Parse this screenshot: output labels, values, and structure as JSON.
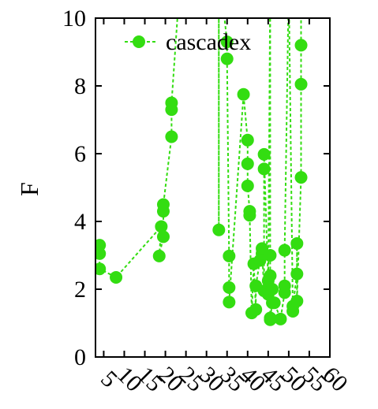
{
  "chart_data": {
    "type": "line",
    "title": "",
    "xlabel": "",
    "ylabel": "F",
    "xlim": [
      3,
      60
    ],
    "ylim": [
      0,
      10
    ],
    "x_ticks": [
      "5",
      "10",
      "15",
      "20",
      "25",
      "30",
      "35",
      "40",
      "45",
      "50",
      "55",
      "60"
    ],
    "x_tick_values": [
      5,
      10,
      15,
      20,
      25,
      30,
      35,
      40,
      45,
      50,
      55,
      60
    ],
    "y_ticks": [
      "0",
      "2",
      "4",
      "6",
      "8",
      "10"
    ],
    "y_tick_values": [
      0,
      2,
      4,
      6,
      8,
      10
    ],
    "grid": false,
    "legend_position": "top",
    "series": [
      {
        "name": "cascadex",
        "color": "#33dd11",
        "points": [
          [
            4.0,
            3.3
          ],
          [
            4.0,
            3.05
          ],
          [
            4.0,
            2.6
          ],
          [
            8.0,
            2.35
          ],
          [
            19.0,
            3.85
          ],
          [
            18.5,
            2.98
          ],
          [
            19.5,
            3.55
          ],
          [
            19.5,
            4.3
          ],
          [
            19.5,
            4.5
          ],
          [
            21.5,
            6.5
          ],
          [
            21.5,
            7.3
          ],
          [
            21.5,
            7.5
          ],
          [
            23.5,
            11.0
          ],
          [
            33.0,
            11.0
          ],
          [
            33.0,
            3.75
          ],
          [
            33.0,
            11.0
          ],
          [
            33.5,
            11.0
          ],
          [
            35.0,
            9.3
          ],
          [
            35.0,
            8.8
          ],
          [
            35.5,
            2.98
          ],
          [
            35.5,
            2.05
          ],
          [
            35.5,
            1.62
          ],
          [
            39.0,
            7.75
          ],
          [
            40.0,
            6.4
          ],
          [
            40.0,
            5.7
          ],
          [
            40.0,
            5.05
          ],
          [
            40.5,
            4.3
          ],
          [
            40.5,
            4.18
          ],
          [
            41.0,
            1.3
          ],
          [
            41.5,
            2.75
          ],
          [
            42.0,
            1.4
          ],
          [
            42.0,
            2.1
          ],
          [
            43.0,
            2.85
          ],
          [
            43.5,
            3.05
          ],
          [
            43.5,
            3.2
          ],
          [
            44.0,
            1.95
          ],
          [
            44.0,
            5.55
          ],
          [
            44.0,
            5.98
          ],
          [
            45.0,
            2.25
          ],
          [
            45.0,
            1.85
          ],
          [
            45.5,
            11.0
          ],
          [
            45.5,
            3.0
          ],
          [
            45.5,
            2.4
          ],
          [
            45.5,
            1.1
          ],
          [
            45.5,
            1.15
          ],
          [
            46.0,
            1.6
          ],
          [
            46.0,
            2.0
          ],
          [
            46.5,
            1.6
          ],
          [
            48.0,
            1.12
          ],
          [
            49.0,
            1.9
          ],
          [
            49.0,
            2.1
          ],
          [
            49.0,
            3.15
          ],
          [
            50.0,
            11.0
          ],
          [
            51.0,
            1.35
          ],
          [
            51.0,
            1.5
          ],
          [
            52.0,
            2.45
          ],
          [
            52.0,
            3.35
          ],
          [
            52.0,
            1.65
          ],
          [
            53.0,
            5.3
          ],
          [
            53.0,
            8.05
          ],
          [
            53.0,
            9.2
          ],
          [
            53.0,
            11.0
          ]
        ]
      }
    ]
  }
}
